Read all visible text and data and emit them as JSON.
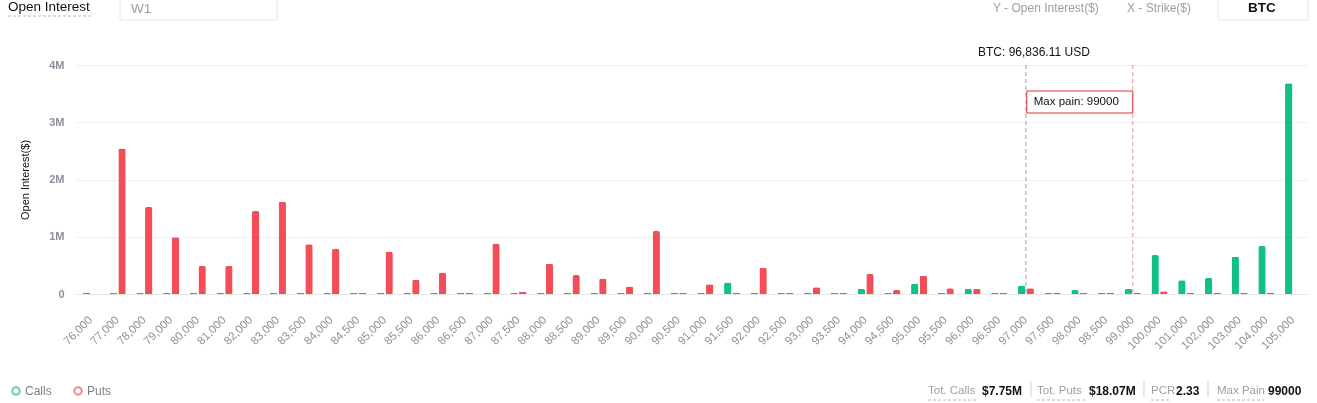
{
  "chart_data": {
    "type": "bar",
    "ylabel": "Open Interest($)",
    "categories": [
      "76,000",
      "77,000",
      "78,000",
      "79,000",
      "80,000",
      "81,000",
      "82,000",
      "83,000",
      "83,500",
      "84,000",
      "84,500",
      "85,000",
      "85,500",
      "86,000",
      "86,500",
      "87,000",
      "87,500",
      "88,000",
      "88,500",
      "89,000",
      "89,500",
      "90,000",
      "90,500",
      "91,000",
      "91,500",
      "92,000",
      "92,500",
      "93,000",
      "93,500",
      "94,000",
      "94,500",
      "95,000",
      "95,500",
      "96,000",
      "96,500",
      "97,000",
      "97,500",
      "98,000",
      "98,500",
      "99,000",
      "100,000",
      "101,000",
      "102,000",
      "103,000",
      "104,000",
      "105,000"
    ],
    "series": [
      {
        "name": "Calls",
        "color": "#12bf86",
        "values": [
          20000,
          20000,
          20000,
          20000,
          20000,
          20000,
          20000,
          20000,
          20000,
          20000,
          20000,
          20000,
          20000,
          20000,
          20000,
          20000,
          20000,
          20000,
          20000,
          20000,
          20000,
          20000,
          20000,
          20000,
          200000,
          20000,
          20000,
          20000,
          20000,
          90000,
          20000,
          180000,
          20000,
          90000,
          20000,
          150000,
          20000,
          70000,
          20000,
          90000,
          680000,
          240000,
          280000,
          650000,
          840000,
          3680000
        ]
      },
      {
        "name": "Puts",
        "color": "#f34e58",
        "values": [
          null,
          2540000,
          1520000,
          990000,
          490000,
          490000,
          1450000,
          1610000,
          870000,
          790000,
          20000,
          740000,
          250000,
          370000,
          20000,
          880000,
          40000,
          530000,
          330000,
          270000,
          130000,
          1100000,
          20000,
          170000,
          20000,
          460000,
          20000,
          120000,
          20000,
          350000,
          70000,
          320000,
          100000,
          90000,
          20000,
          100000,
          20000,
          20000,
          20000,
          20000,
          50000,
          20000,
          20000,
          20000,
          20000,
          null
        ]
      }
    ],
    "ylim": [
      0,
      4000000
    ],
    "yticks": [
      0,
      {
        "value": 1000000,
        "label": "1M"
      },
      {
        "value": 2000000,
        "label": "2M"
      },
      {
        "value": 3000000,
        "label": "3M"
      },
      {
        "value": 4000000,
        "label": "4M"
      }
    ],
    "grid": "y",
    "legend": "bottom left",
    "ref_lines": [
      {
        "axis": "x",
        "value": "97,000",
        "label": "BTC: 96,836.11 USD",
        "color": "#9e9e9e",
        "line_style": "dashed"
      },
      {
        "axis": "x",
        "value": "99,000",
        "label": "Max pain: 99000",
        "color": "#f28b8b",
        "line_style": "dashed"
      }
    ],
    "annotations": [
      "Open Interest",
      "W1",
      "Y - Open Interest($)",
      "X - Strike($)",
      "BTC",
      "Tot. Calls",
      "$7.75M",
      "Tot. Puts",
      "$18.07M",
      "PCR",
      "2.33",
      "Max Pain",
      "99000"
    ]
  }
}
